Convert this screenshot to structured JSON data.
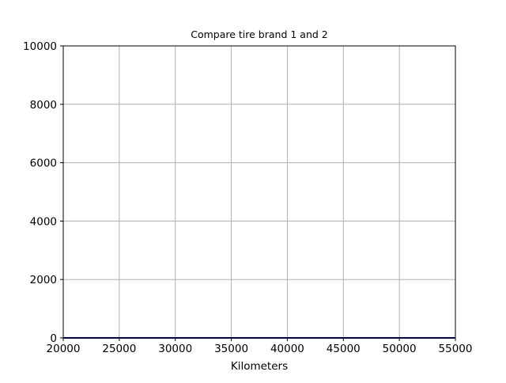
{
  "chart_data": {
    "type": "line",
    "title": "Compare tire brand 1 and 2",
    "xlabel": "Kilometers",
    "ylabel": "",
    "xlim": [
      20000,
      55000
    ],
    "ylim": [
      0,
      10000
    ],
    "xticks": [
      20000,
      25000,
      30000,
      35000,
      40000,
      45000,
      50000,
      55000
    ],
    "yticks": [
      0,
      2000,
      4000,
      6000,
      8000,
      10000
    ],
    "grid": true,
    "legend": "none",
    "series": [
      {
        "color": "#00008b",
        "x": [
          20000,
          55000
        ],
        "y": [
          0,
          0
        ]
      }
    ]
  },
  "colors": {
    "grid": "#b0b0b0",
    "axes": "#000000"
  }
}
